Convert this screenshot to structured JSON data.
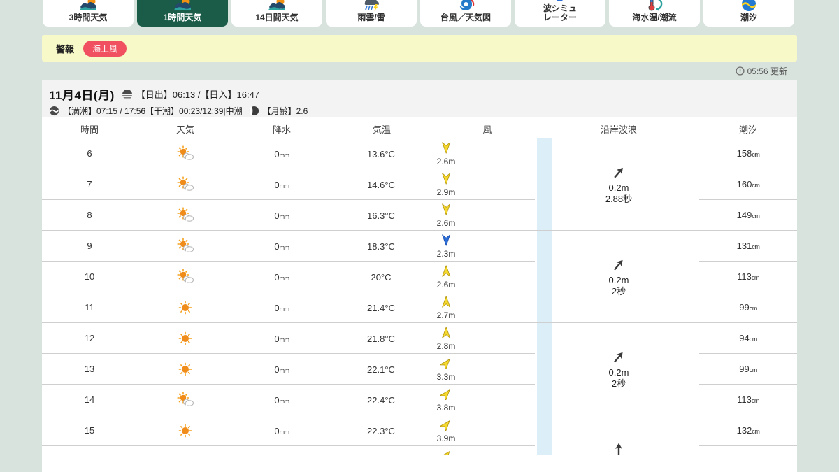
{
  "page": {
    "update_time": "05:56 更新"
  },
  "colors": {
    "page_bg": "#d9e3de",
    "active_tab_green": "#1b5c49",
    "warning_bg": "#f8f9c8",
    "alert_red": "#f0505f",
    "wind_yellow": "#f5d92e",
    "wind_blue": "#2d6fd9",
    "wave_strip_blue": "#dceef8"
  },
  "tabs": [
    {
      "label": "3時間天気",
      "icon": "weather-logo",
      "active": false
    },
    {
      "label": "1時間天気",
      "icon": "weather-logo",
      "active": true
    },
    {
      "label": "14日間天気",
      "icon": "weather-logo",
      "active": false
    },
    {
      "label": "雨雲/雷",
      "icon": "rain-thunder",
      "active": false
    },
    {
      "label": "台風／天気図",
      "icon": "typhoon",
      "active": false
    },
    {
      "label": "波シミュ\nレーター",
      "icon": "wave-sim",
      "active": false
    },
    {
      "label": "海水温/潮流",
      "icon": "sea-temp",
      "active": false
    },
    {
      "label": "潮汐",
      "icon": "tide",
      "active": false
    }
  ],
  "warning": {
    "label": "警報",
    "badge": "海上風"
  },
  "date_header": {
    "date": "11月4日(月)",
    "sunrise_sunset": "【日出】06:13 /【日入】16:47",
    "tide_info": "【満潮】07:15 / 17:56【干潮】00:23/12:39|中潮",
    "moon_age": "【月齢】2.6"
  },
  "table": {
    "headers": [
      "時間",
      "天気",
      "降水",
      "気温",
      "風",
      "沿岸波浪",
      "潮汐"
    ],
    "rows": [
      {
        "hour": "6",
        "weather": "sun-cloud",
        "precip": "0",
        "precip_unit": "mm",
        "temp": "13.6°C",
        "wind": {
          "dir": 180,
          "color": "yellow",
          "speed": "2.6m"
        },
        "tide": "158",
        "tide_unit": "cm"
      },
      {
        "hour": "7",
        "weather": "sun-cloud",
        "precip": "0",
        "precip_unit": "mm",
        "temp": "14.6°C",
        "wind": {
          "dir": 180,
          "color": "yellow",
          "speed": "2.9m"
        },
        "tide": "160",
        "tide_unit": "cm"
      },
      {
        "hour": "8",
        "weather": "sun-cloud",
        "precip": "0",
        "precip_unit": "mm",
        "temp": "16.3°C",
        "wind": {
          "dir": 180,
          "color": "yellow",
          "speed": "2.6m"
        },
        "tide": "149",
        "tide_unit": "cm"
      },
      {
        "hour": "9",
        "weather": "sun-cloud",
        "precip": "0",
        "precip_unit": "mm",
        "temp": "18.3°C",
        "wind": {
          "dir": 180,
          "color": "blue",
          "speed": "2.3m"
        },
        "tide": "131",
        "tide_unit": "cm"
      },
      {
        "hour": "10",
        "weather": "sun-cloud",
        "precip": "0",
        "precip_unit": "mm",
        "temp": "20°C",
        "wind": {
          "dir": 0,
          "color": "yellow",
          "speed": "2.6m"
        },
        "tide": "113",
        "tide_unit": "cm"
      },
      {
        "hour": "11",
        "weather": "sun",
        "precip": "0",
        "precip_unit": "mm",
        "temp": "21.4°C",
        "wind": {
          "dir": 0,
          "color": "yellow",
          "speed": "2.7m"
        },
        "tide": "99",
        "tide_unit": "cm"
      },
      {
        "hour": "12",
        "weather": "sun",
        "precip": "0",
        "precip_unit": "mm",
        "temp": "21.8°C",
        "wind": {
          "dir": 0,
          "color": "yellow",
          "speed": "2.8m"
        },
        "tide": "94",
        "tide_unit": "cm"
      },
      {
        "hour": "13",
        "weather": "sun",
        "precip": "0",
        "precip_unit": "mm",
        "temp": "22.1°C",
        "wind": {
          "dir": 40,
          "color": "yellow",
          "speed": "3.3m"
        },
        "tide": "99",
        "tide_unit": "cm"
      },
      {
        "hour": "14",
        "weather": "sun-cloud",
        "precip": "0",
        "precip_unit": "mm",
        "temp": "22.4°C",
        "wind": {
          "dir": 40,
          "color": "yellow",
          "speed": "3.8m"
        },
        "tide": "113",
        "tide_unit": "cm"
      },
      {
        "hour": "15",
        "weather": "sun",
        "precip": "0",
        "precip_unit": "mm",
        "temp": "22.3°C",
        "wind": {
          "dir": 40,
          "color": "yellow",
          "speed": "3.9m"
        },
        "tide": "132",
        "tide_unit": "cm"
      },
      {
        "hour": "",
        "weather": "none",
        "precip": "",
        "precip_unit": "",
        "temp": "",
        "wind": {
          "dir": 40,
          "color": "yellow",
          "speed": ""
        },
        "tide": "",
        "tide_unit": ""
      }
    ],
    "wave_cells": [
      {
        "rows": "6-8",
        "arrow_deg": 40,
        "height": "0.2m",
        "period": "2.88秒"
      },
      {
        "rows": "9-11",
        "arrow_deg": 40,
        "height": "0.2m",
        "period": "2秒"
      },
      {
        "rows": "12-14",
        "arrow_deg": 40,
        "height": "0.2m",
        "period": "2秒"
      },
      {
        "rows": "15-17",
        "arrow_deg": 0,
        "height": "",
        "period": ""
      }
    ]
  }
}
